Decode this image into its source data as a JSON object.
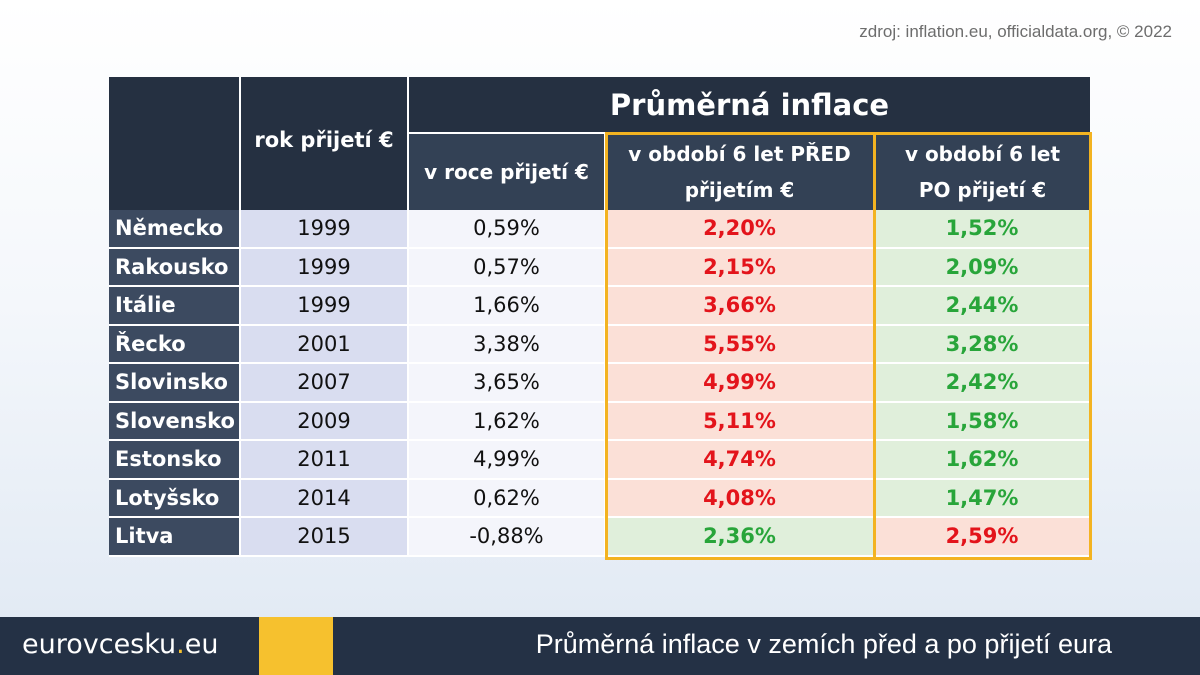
{
  "source": "zdroj: inflation.eu, officialdata.org, © 2022",
  "table": {
    "title": "Průměrná inflace",
    "col_year": "rok přijetí €",
    "col_in_year": "v roce přijetí €",
    "col_before_1": "v období 6 let PŘED",
    "col_before_2": "přijetím €",
    "col_after_1": "v období 6 let",
    "col_after_2": "PO přijetí €",
    "rows": [
      {
        "country": "Německo",
        "year": "1999",
        "in_year": "0,59%",
        "before": "2,20%",
        "after": "1,52%"
      },
      {
        "country": "Rakousko",
        "year": "1999",
        "in_year": "0,57%",
        "before": "2,15%",
        "after": "2,09%"
      },
      {
        "country": "Itálie",
        "year": "1999",
        "in_year": "1,66%",
        "before": "3,66%",
        "after": "2,44%"
      },
      {
        "country": "Řecko",
        "year": "2001",
        "in_year": "3,38%",
        "before": "5,55%",
        "after": "3,28%"
      },
      {
        "country": "Slovinsko",
        "year": "2007",
        "in_year": "3,65%",
        "before": "4,99%",
        "after": "2,42%"
      },
      {
        "country": "Slovensko",
        "year": "2009",
        "in_year": "1,62%",
        "before": "5,11%",
        "after": "1,58%"
      },
      {
        "country": "Estonsko",
        "year": "2011",
        "in_year": "4,99%",
        "before": "4,74%",
        "after": "1,62%"
      },
      {
        "country": "Lotyšsko",
        "year": "2014",
        "in_year": "0,62%",
        "before": "4,08%",
        "after": "1,47%"
      },
      {
        "country": "Litva",
        "year": "2015",
        "in_year": "-0,88%",
        "before": "2,36%",
        "after": "2,59%"
      }
    ]
  },
  "colors": {
    "higher_red": "#e3141b",
    "lower_green": "#28a53a",
    "highlight_yellow": "#f3b321"
  },
  "footer": {
    "brand_prefix": "eurovcesku",
    "brand_dot": ".",
    "brand_suffix": "eu",
    "title": "Průměrná inflace v zemích před a po přijetí eura"
  }
}
